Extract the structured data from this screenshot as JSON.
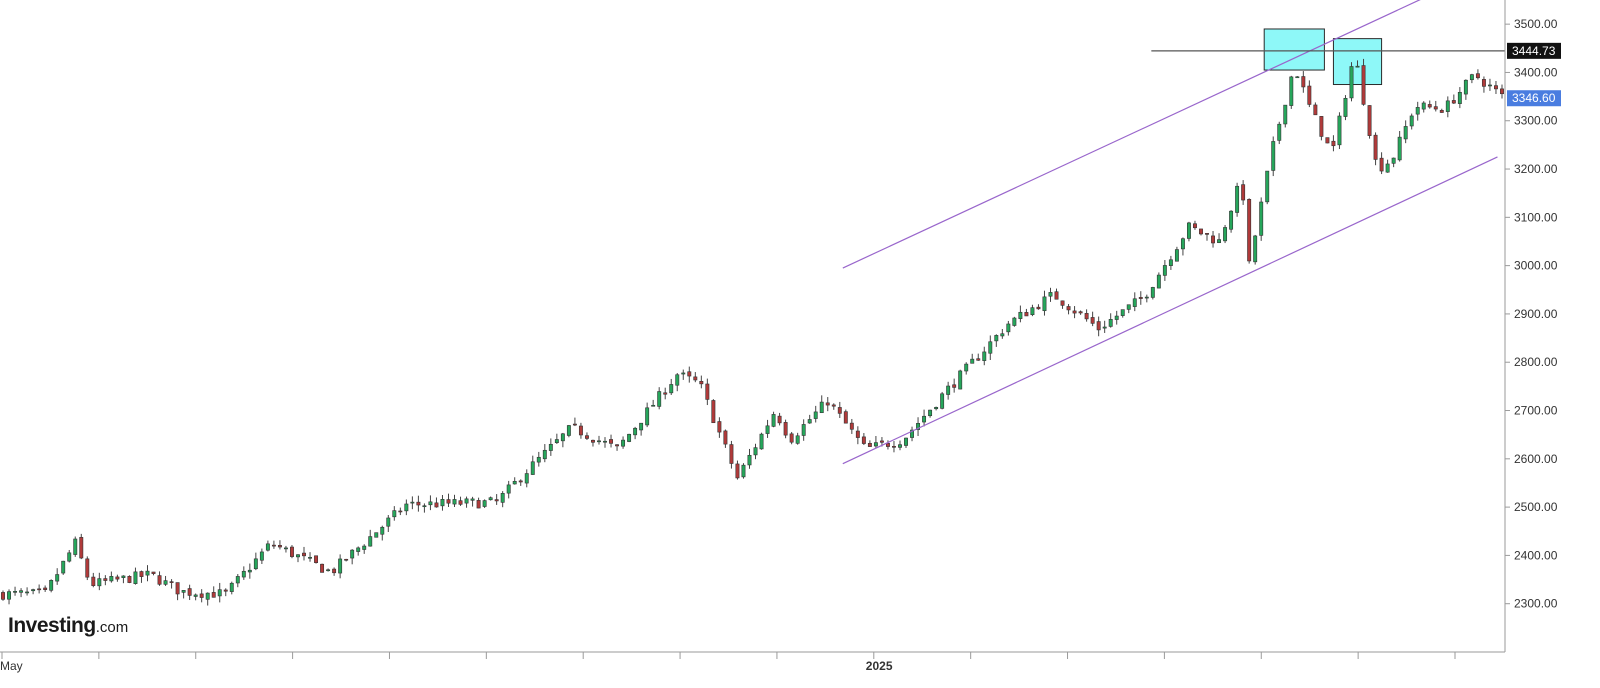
{
  "chart_data": {
    "type": "candlestick",
    "title": "",
    "xlabel": "",
    "ylabel": "",
    "ylim": [
      2200,
      3550
    ],
    "y_ticks": [
      "2300.00",
      "2400.00",
      "2500.00",
      "2600.00",
      "2700.00",
      "2800.00",
      "2900.00",
      "3000.00",
      "3100.00",
      "3200.00",
      "3300.00",
      "3400.00",
      "3500.00"
    ],
    "x_ticks": [
      "May",
      "",
      "",
      "",
      "",
      "",
      "",
      "",
      "",
      "2025",
      "",
      "",
      "",
      "",
      "",
      ""
    ],
    "grid": false,
    "colors": {
      "up": "#26a65b",
      "down": "#b03a3a",
      "channel": "#9966cc",
      "highlight": "#7af7f7"
    },
    "price_tags": [
      {
        "label": "3444.73",
        "value": 3444.73,
        "color": "#111111"
      },
      {
        "label": "3346.60",
        "value": 3346.6,
        "color": "#4a7de0"
      }
    ],
    "horizontal_line": 3444.73,
    "channel_upper": [
      [
        0.56,
        2995
      ],
      [
        0.95,
        3560
      ]
    ],
    "channel_lower": [
      [
        0.56,
        2590
      ],
      [
        0.995,
        3225
      ]
    ],
    "highlight_boxes": [
      {
        "x0": 0.84,
        "x1": 0.88,
        "y0": 3405,
        "y1": 3490
      },
      {
        "x0": 0.886,
        "x1": 0.918,
        "y0": 3375,
        "y1": 3470
      }
    ],
    "anchors": [
      [
        0,
        2320
      ],
      [
        0.03,
        2320
      ],
      [
        0.05,
        2425
      ],
      [
        0.06,
        2340
      ],
      [
        0.1,
        2360
      ],
      [
        0.12,
        2325
      ],
      [
        0.15,
        2320
      ],
      [
        0.18,
        2425
      ],
      [
        0.22,
        2365
      ],
      [
        0.27,
        2505
      ],
      [
        0.33,
        2510
      ],
      [
        0.35,
        2575
      ],
      [
        0.38,
        2665
      ],
      [
        0.41,
        2620
      ],
      [
        0.45,
        2775
      ],
      [
        0.465,
        2755
      ],
      [
        0.49,
        2560
      ],
      [
        0.515,
        2700
      ],
      [
        0.525,
        2640
      ],
      [
        0.55,
        2720
      ],
      [
        0.575,
        2620
      ],
      [
        0.6,
        2640
      ],
      [
        0.63,
        2745
      ],
      [
        0.67,
        2880
      ],
      [
        0.7,
        2940
      ],
      [
        0.73,
        2870
      ],
      [
        0.76,
        2935
      ],
      [
        0.79,
        3080
      ],
      [
        0.81,
        3050
      ],
      [
        0.825,
        3180
      ],
      [
        0.83,
        3000
      ],
      [
        0.845,
        3235
      ],
      [
        0.86,
        3415
      ],
      [
        0.87,
        3330
      ],
      [
        0.885,
        3230
      ],
      [
        0.9,
        3440
      ],
      [
        0.915,
        3200
      ],
      [
        0.925,
        3220
      ],
      [
        0.94,
        3330
      ],
      [
        0.96,
        3325
      ],
      [
        0.98,
        3395
      ],
      [
        1,
        3346
      ]
    ]
  },
  "logo": {
    "brand": "Investing",
    "tld": ".com"
  }
}
